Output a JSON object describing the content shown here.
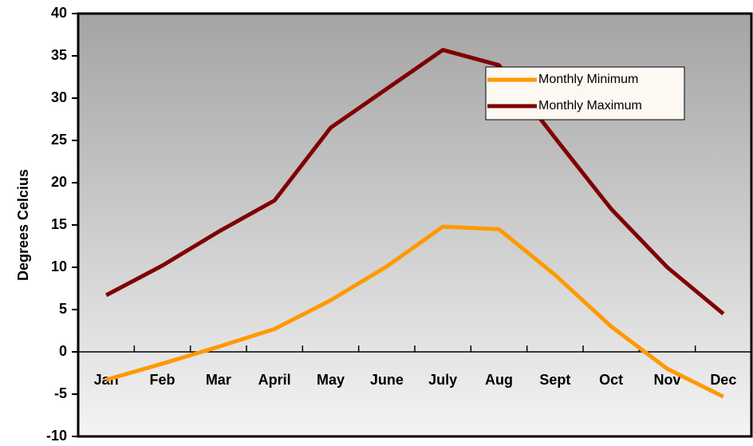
{
  "chart_data": {
    "type": "line",
    "y_label": "Degrees Celcius",
    "categories": [
      "Jan",
      "Feb",
      "Mar",
      "April",
      "May",
      "June",
      "July",
      "Aug",
      "Sept",
      "Oct",
      "Nov",
      "Dec"
    ],
    "series": [
      {
        "name": "Monthly Minimum",
        "color": "#ff9900",
        "values": [
          -3.3,
          -1.4,
          0.6,
          2.7,
          6.1,
          10.1,
          14.8,
          14.5,
          9.1,
          3.0,
          -2.0,
          -5.3
        ]
      },
      {
        "name": "Monthly Maximum",
        "color": "#800000",
        "values": [
          6.7,
          10.2,
          14.2,
          17.9,
          26.5,
          31.1,
          35.7,
          33.9,
          25.3,
          16.9,
          10.0,
          4.5
        ]
      }
    ],
    "ylim": [
      -10,
      40
    ],
    "yticks": [
      -10,
      -5,
      0,
      5,
      10,
      15,
      20,
      25,
      30,
      35,
      40
    ],
    "legend": "top-right"
  }
}
